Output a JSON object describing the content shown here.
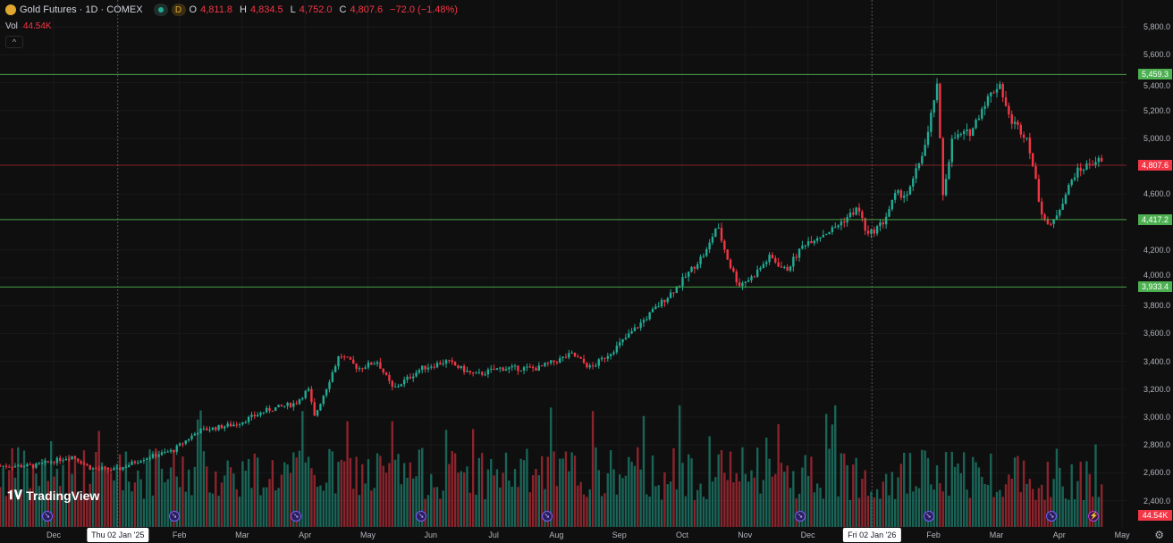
{
  "header": {
    "symbol": "Gold Futures · 1D · COMEX",
    "interval_badge": "D",
    "o_label": "O",
    "o": "4,811.8",
    "h_label": "H",
    "h": "4,834.5",
    "l_label": "L",
    "l": "4,752.0",
    "c_label": "C",
    "c": "4,807.6",
    "change": "−72.0 (−1.48%)",
    "vol_label": "Vol",
    "vol": "44.54K",
    "collapse": "^"
  },
  "colors": {
    "up": "#22ab94",
    "down": "#f23645",
    "hline": "#4caf50",
    "bg": "#0f0f0f"
  },
  "brand": "TradingView",
  "chart_data": {
    "type": "candlestick",
    "title": "Gold Futures · 1D · COMEX",
    "ylim": [
      2350,
      5900
    ],
    "y_ticks": [
      "5,800.0",
      "5,600.0",
      "5,400.0",
      "5,200.0",
      "5,000.0",
      "4,600.0",
      "4,200.0",
      "4,000.0",
      "3,800.0",
      "3,600.0",
      "3,400.0",
      "3,200.0",
      "3,000.0",
      "2,800.0",
      "2,600.0",
      "2,400.0"
    ],
    "y_tick_values": [
      5800,
      5600,
      5400,
      5200,
      5000,
      4600,
      4200,
      4000,
      3800,
      3600,
      3400,
      3200,
      3000,
      2800,
      2600,
      2400
    ],
    "x_ticks": [
      "Dec",
      "Feb",
      "Mar",
      "Apr",
      "May",
      "Jun",
      "Jul",
      "Aug",
      "Sep",
      "Oct",
      "Nov",
      "Dec",
      "Feb",
      "Mar",
      "Apr",
      "May"
    ],
    "x_tick_months": [
      0,
      2,
      3,
      4,
      5,
      6,
      7,
      8,
      9,
      10,
      11,
      12,
      14,
      15,
      16,
      17
    ],
    "crosshair_labels": [
      {
        "label": "Thu 02 Jan '25",
        "month": 1.02
      },
      {
        "label": "Fri 02 Jan '26",
        "month": 13.02
      }
    ],
    "price_path_month_offset_from_dec_2024": [
      [
        -0.85,
        2650
      ],
      [
        -0.3,
        2650
      ],
      [
        0.3,
        2720
      ],
      [
        0.6,
        2630
      ],
      [
        1.0,
        2620
      ],
      [
        1.4,
        2700
      ],
      [
        1.9,
        2760
      ],
      [
        2.3,
        2900
      ],
      [
        2.9,
        2950
      ],
      [
        3.4,
        3050
      ],
      [
        3.85,
        3100
      ],
      [
        4.05,
        3200
      ],
      [
        4.15,
        3000
      ],
      [
        4.55,
        3450
      ],
      [
        4.85,
        3350
      ],
      [
        5.15,
        3400
      ],
      [
        5.4,
        3200
      ],
      [
        5.85,
        3350
      ],
      [
        6.25,
        3400
      ],
      [
        6.7,
        3300
      ],
      [
        7.1,
        3350
      ],
      [
        7.7,
        3350
      ],
      [
        8.25,
        3450
      ],
      [
        8.55,
        3350
      ],
      [
        8.95,
        3500
      ],
      [
        9.4,
        3700
      ],
      [
        9.95,
        3950
      ],
      [
        10.4,
        4200
      ],
      [
        10.55,
        4380
      ],
      [
        10.75,
        4100
      ],
      [
        10.9,
        3950
      ],
      [
        11.1,
        4000
      ],
      [
        11.4,
        4150
      ],
      [
        11.65,
        4050
      ],
      [
        11.95,
        4250
      ],
      [
        12.4,
        4350
      ],
      [
        12.8,
        4500
      ],
      [
        12.95,
        4300
      ],
      [
        13.2,
        4400
      ],
      [
        13.4,
        4600
      ],
      [
        13.6,
        4600
      ],
      [
        13.9,
        5000
      ],
      [
        14.05,
        5400
      ],
      [
        14.15,
        4600
      ],
      [
        14.3,
        5000
      ],
      [
        14.6,
        5050
      ],
      [
        14.8,
        5250
      ],
      [
        15.05,
        5400
      ],
      [
        15.2,
        5150
      ],
      [
        15.5,
        5000
      ],
      [
        15.7,
        4500
      ],
      [
        15.85,
        4350
      ],
      [
        16.0,
        4500
      ],
      [
        16.25,
        4750
      ],
      [
        16.6,
        4850
      ],
      [
        16.7,
        4807.6
      ]
    ],
    "horizontal_levels": [
      {
        "value": 5459.3,
        "label": "5,459.3",
        "color": "#4caf50"
      },
      {
        "value": 4807.6,
        "label": "4,807.6",
        "color": "#f23645"
      },
      {
        "value": 4417.2,
        "label": "4,417.2",
        "color": "#4caf50"
      },
      {
        "value": 3933.4,
        "label": "3,933.4",
        "color": "#4caf50"
      }
    ],
    "volume_last": "44.54K",
    "event_months": [
      -0.1,
      1.92,
      3.86,
      5.85,
      7.85,
      11.88,
      13.92,
      15.88
    ],
    "lightning_month": 16.55
  }
}
